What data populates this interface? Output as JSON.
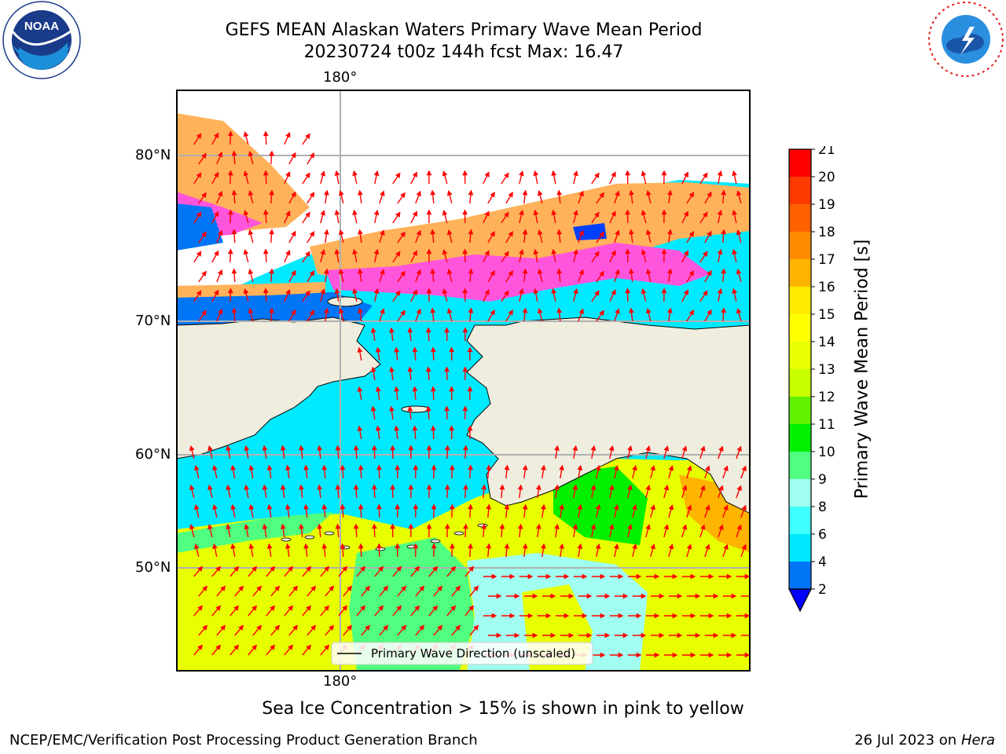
{
  "title": {
    "line1": "GEFS MEAN Alaskan Waters Primary Wave Mean Period",
    "line2": "20230724 t00z 144h fcst   Max: 16.47"
  },
  "map": {
    "top_lon_label": "180°",
    "bottom_lon_label": "180°",
    "lat_labels": [
      "80°N",
      "70°N",
      "60°N",
      "50°N"
    ],
    "legend_text": "Primary Wave Direction (unscaled)",
    "colors": {
      "land": "#efedde",
      "ice_pink": "#ff55dd",
      "ice_orange": "#ffb25a",
      "arrow": "#ff0000"
    }
  },
  "colorbar": {
    "label": "Primary Wave Mean Period [s]",
    "ticks": [
      "2",
      "4",
      "6",
      "8",
      "9",
      "10",
      "11",
      "12",
      "13",
      "14",
      "15",
      "16",
      "17",
      "18",
      "19",
      "20",
      "21"
    ],
    "colors": [
      "#0075f6",
      "#00e8ff",
      "#40ffff",
      "#a0fff0",
      "#50ff80",
      "#00f000",
      "#60f000",
      "#c8ff00",
      "#e8ff00",
      "#ffff00",
      "#ffeb00",
      "#ffb400",
      "#ff8c00",
      "#ff6000",
      "#ff3a00",
      "#ff0000"
    ],
    "under_color": "#0000ff"
  },
  "note": "Sea Ice Concentration > 15% is shown in pink to yellow",
  "footer": {
    "left": "NCEP/EMC/Verification Post Processing Product Generation Branch",
    "date": "26 Jul 2023 on",
    "machine": "Hera"
  },
  "logos": {
    "left": "NOAA",
    "left_ring": "NATIONAL OCEANIC AND ATMOSPHERIC ADMINISTRATION · U.S. DEPARTMENT OF COMMERCE",
    "right_ring": "NATIONAL WEATHER SERVICE"
  }
}
